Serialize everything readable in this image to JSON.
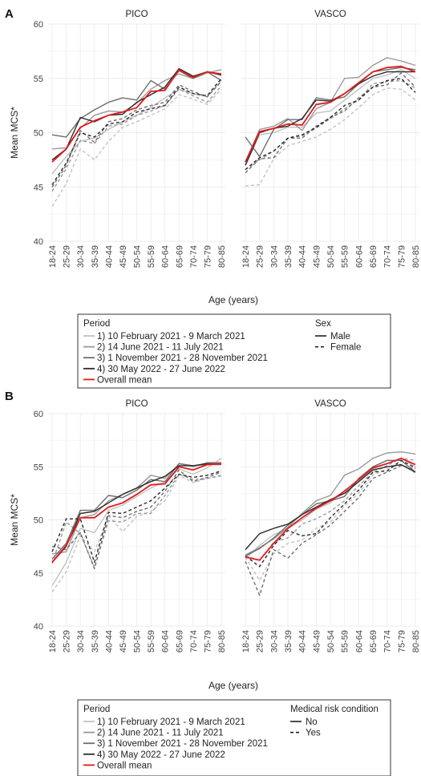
{
  "chart_data": [
    {
      "type": "line",
      "panel_label": "A",
      "ylabel": "Mean MCS*",
      "xlabel": "Age (years)",
      "ylim": [
        40,
        60
      ],
      "yticks": [
        40,
        45,
        50,
        55,
        60
      ],
      "grid": true,
      "categories": [
        "18-24",
        "25-29",
        "30-34",
        "35-39",
        "40-44",
        "45-49",
        "50-54",
        "55-59",
        "60-64",
        "65-69",
        "70-74",
        "75-79",
        "80-85"
      ],
      "facets": [
        {
          "title": "PICO",
          "series": [
            {
              "period": 0,
              "group": 0,
              "values": [
                46.2,
                47.8,
                49.2,
                49.5,
                50.3,
                51.0,
                51.6,
                52.3,
                53.2,
                54.0,
                53.6,
                53.3,
                54.8
              ]
            },
            {
              "period": 0,
              "group": 1,
              "values": [
                43.2,
                45.3,
                48.5,
                47.5,
                49.2,
                50.5,
                51.0,
                51.6,
                52.2,
                53.5,
                53.1,
                52.6,
                54.0
              ]
            },
            {
              "period": 1,
              "group": 0,
              "values": [
                48.5,
                48.6,
                50.4,
                51.6,
                52.0,
                51.9,
                52.7,
                54.0,
                54.8,
                55.4,
                55.0,
                55.5,
                55.8
              ]
            },
            {
              "period": 1,
              "group": 1,
              "values": [
                44.6,
                46.7,
                49.3,
                49.0,
                50.6,
                50.8,
                51.6,
                52.0,
                52.5,
                54.0,
                53.4,
                52.8,
                54.3
              ]
            },
            {
              "period": 2,
              "group": 0,
              "values": [
                49.8,
                49.6,
                51.3,
                52.1,
                52.8,
                53.2,
                53.0,
                54.8,
                54.0,
                55.7,
                55.0,
                55.6,
                54.8
              ]
            },
            {
              "period": 2,
              "group": 1,
              "values": [
                45.0,
                47.0,
                50.2,
                49.1,
                51.0,
                51.3,
                52.1,
                52.5,
                52.8,
                54.4,
                53.8,
                53.3,
                54.7
              ]
            },
            {
              "period": 3,
              "group": 0,
              "values": [
                47.5,
                48.5,
                51.4,
                51.0,
                51.6,
                51.7,
                52.8,
                53.5,
                54.2,
                55.9,
                55.2,
                55.6,
                55.3
              ]
            },
            {
              "period": 3,
              "group": 1,
              "values": [
                45.2,
                47.2,
                50.0,
                49.6,
                50.8,
                51.0,
                51.9,
                52.2,
                52.5,
                54.2,
                53.6,
                53.4,
                55.0
              ]
            },
            {
              "period": 4,
              "group": 2,
              "values": [
                47.3,
                48.5,
                50.5,
                51.1,
                51.6,
                51.9,
                52.3,
                53.8,
                53.9,
                55.8,
                55.1,
                55.6,
                55.4
              ]
            }
          ]
        },
        {
          "title": "VASCO",
          "series": [
            {
              "period": 0,
              "group": 0,
              "values": [
                47.0,
                49.8,
                50.0,
                50.5,
                50.5,
                51.8,
                52.0,
                53.0,
                54.0,
                55.0,
                55.3,
                55.8,
                55.0
              ]
            },
            {
              "period": 0,
              "group": 1,
              "values": [
                45.1,
                45.2,
                47.6,
                48.8,
                49.2,
                49.6,
                50.3,
                51.2,
                52.3,
                53.5,
                54.1,
                54.0,
                53.0
              ]
            },
            {
              "period": 1,
              "group": 0,
              "values": [
                47.3,
                50.3,
                50.6,
                51.3,
                50.2,
                52.2,
                52.8,
                55.0,
                55.1,
                56.2,
                56.9,
                56.6,
                56.2
              ]
            },
            {
              "period": 1,
              "group": 1,
              "values": [
                46.6,
                47.5,
                48.3,
                49.5,
                49.7,
                50.4,
                51.3,
                52.2,
                53.0,
                54.5,
                54.7,
                54.8,
                54.1
              ]
            },
            {
              "period": 2,
              "group": 0,
              "values": [
                49.6,
                47.8,
                50.3,
                51.2,
                51.2,
                53.2,
                53.0,
                53.3,
                54.5,
                55.6,
                55.8,
                56.0,
                55.8
              ]
            },
            {
              "period": 2,
              "group": 1,
              "values": [
                46.3,
                47.6,
                47.7,
                49.5,
                49.5,
                50.6,
                51.4,
                52.0,
                53.2,
                54.2,
                54.4,
                55.5,
                54.2
              ]
            },
            {
              "period": 3,
              "group": 0,
              "values": [
                47.0,
                50.0,
                50.4,
                50.6,
                51.3,
                53.0,
                52.9,
                53.6,
                54.5,
                55.2,
                55.6,
                55.6,
                55.6
              ]
            },
            {
              "period": 3,
              "group": 1,
              "values": [
                46.6,
                47.7,
                48.3,
                49.5,
                49.8,
                50.5,
                51.4,
                52.5,
                53.0,
                54.2,
                54.8,
                55.0,
                53.7
              ]
            },
            {
              "period": 4,
              "group": 2,
              "values": [
                47.3,
                50.1,
                50.4,
                50.8,
                50.7,
                52.6,
                52.8,
                53.6,
                54.6,
                55.6,
                56.0,
                56.1,
                55.6
              ]
            }
          ]
        }
      ],
      "legend": {
        "period_title": "Period",
        "group_title": "Sex",
        "group_labels": [
          "Male",
          "Female"
        ]
      }
    },
    {
      "type": "line",
      "panel_label": "B",
      "ylabel": "Mean MCS*",
      "xlabel": "Age (years)",
      "ylim": [
        40,
        60
      ],
      "yticks": [
        40,
        45,
        50,
        55,
        60
      ],
      "grid": true,
      "categories": [
        "18-24",
        "25-29",
        "30-34",
        "35-39",
        "40-44",
        "45-49",
        "50-54",
        "55-59",
        "60-64",
        "65-69",
        "70-74",
        "75-79",
        "80-85"
      ],
      "facets": [
        {
          "title": "PICO",
          "series": [
            {
              "period": 0,
              "group": 0,
              "values": [
                43.8,
                46.0,
                49.2,
                48.8,
                50.9,
                51.4,
                52.2,
                53.0,
                53.6,
                54.8,
                54.3,
                54.9,
                55.8
              ]
            },
            {
              "period": 0,
              "group": 1,
              "values": [
                43.2,
                45.1,
                48.5,
                47.0,
                50.4,
                48.9,
                50.3,
                50.8,
                51.8,
                54.2,
                53.5,
                53.9,
                54.1
              ]
            },
            {
              "period": 1,
              "group": 0,
              "values": [
                46.8,
                47.0,
                50.2,
                50.5,
                51.8,
                52.4,
                53.0,
                54.2,
                53.9,
                55.3,
                55.0,
                55.4,
                55.4
              ]
            },
            {
              "period": 1,
              "group": 1,
              "values": [
                45.9,
                49.8,
                48.7,
                45.5,
                49.9,
                49.8,
                50.6,
                50.6,
                52.3,
                54.3,
                53.8,
                53.9,
                54.2
              ]
            },
            {
              "period": 2,
              "group": 0,
              "values": [
                46.3,
                47.8,
                50.9,
                50.9,
                52.3,
                52.1,
                52.8,
                53.8,
                53.6,
                55.3,
                55.1,
                55.2,
                55.2
              ]
            },
            {
              "period": 2,
              "group": 1,
              "values": [
                47.5,
                47.2,
                48.8,
                45.4,
                50.4,
                50.2,
                50.8,
                51.2,
                52.7,
                54.7,
                53.6,
                54.0,
                54.5
              ]
            },
            {
              "period": 3,
              "group": 0,
              "values": [
                46.0,
                47.5,
                50.6,
                50.8,
                51.6,
                52.4,
                53.0,
                53.6,
                54.1,
                55.1,
                55.1,
                55.3,
                55.3
              ]
            },
            {
              "period": 3,
              "group": 1,
              "values": [
                47.0,
                50.1,
                50.1,
                46.0,
                50.7,
                50.6,
                51.2,
                51.8,
                53.0,
                54.3,
                54.0,
                54.2,
                54.6
              ]
            },
            {
              "period": 4,
              "group": 2,
              "values": [
                46.0,
                47.6,
                50.2,
                50.2,
                51.2,
                51.6,
                52.4,
                53.3,
                53.4,
                55.0,
                54.7,
                55.2,
                55.3
              ]
            }
          ]
        },
        {
          "title": "VASCO",
          "series": [
            {
              "period": 0,
              "group": 0,
              "values": [
                46.3,
                47.6,
                48.6,
                49.2,
                50.0,
                51.0,
                51.6,
                52.8,
                53.6,
                54.8,
                55.3,
                55.8,
                55.0
              ]
            },
            {
              "period": 0,
              "group": 1,
              "values": [
                46.5,
                44.3,
                46.8,
                47.8,
                48.1,
                49.2,
                49.8,
                51.3,
                52.5,
                54.2,
                54.8,
                55.2,
                54.4
              ]
            },
            {
              "period": 1,
              "group": 0,
              "values": [
                46.7,
                47.4,
                48.2,
                49.3,
                50.6,
                51.8,
                52.3,
                54.2,
                54.8,
                55.8,
                56.3,
                56.4,
                56.2
              ]
            },
            {
              "period": 1,
              "group": 1,
              "values": [
                46.6,
                46.2,
                47.9,
                48.3,
                49.6,
                50.1,
                50.8,
                51.8,
                53.2,
                54.5,
                55.1,
                55.8,
                55.6
              ]
            },
            {
              "period": 2,
              "group": 0,
              "values": [
                46.6,
                47.3,
                48.3,
                49.5,
                50.5,
                51.5,
                51.8,
                52.2,
                53.9,
                55.0,
                55.6,
                55.6,
                54.5
              ]
            },
            {
              "period": 2,
              "group": 1,
              "values": [
                46.1,
                42.9,
                47.2,
                46.4,
                47.8,
                48.6,
                49.5,
                50.8,
                52.1,
                53.9,
                54.5,
                55.1,
                54.8
              ]
            },
            {
              "period": 3,
              "group": 0,
              "values": [
                47.2,
                48.7,
                49.2,
                49.6,
                50.5,
                51.2,
                51.9,
                52.5,
                53.6,
                54.7,
                55.0,
                55.2,
                54.5
              ]
            },
            {
              "period": 3,
              "group": 1,
              "values": [
                46.6,
                45.6,
                47.6,
                49.0,
                48.5,
                48.7,
                50.2,
                51.5,
                52.8,
                54.5,
                54.6,
                55.6,
                54.9
              ]
            },
            {
              "period": 4,
              "group": 2,
              "values": [
                46.5,
                46.2,
                47.8,
                49.2,
                50.2,
                51.1,
                51.8,
                52.7,
                53.8,
                54.9,
                55.3,
                55.8,
                55.2
              ]
            }
          ]
        }
      ],
      "legend": {
        "period_title": "Period",
        "group_title": "Medical risk condition",
        "group_labels": [
          "No",
          "Yes"
        ]
      }
    }
  ],
  "period_labels": [
    "1) 10 February 2021 - 9 March 2021",
    "2) 14 June 2021 - 11 July 2021",
    "3) 1 November 2021 - 28 November 2021",
    "4) 30 May 2022 - 27 June 2022",
    "Overall mean"
  ],
  "colors": {
    "period": [
      "#c2c2c2",
      "#9a9a9a",
      "#6e6e6e",
      "#2b2b2b",
      "#e31a1c"
    ],
    "grid": "#ebebeb"
  }
}
